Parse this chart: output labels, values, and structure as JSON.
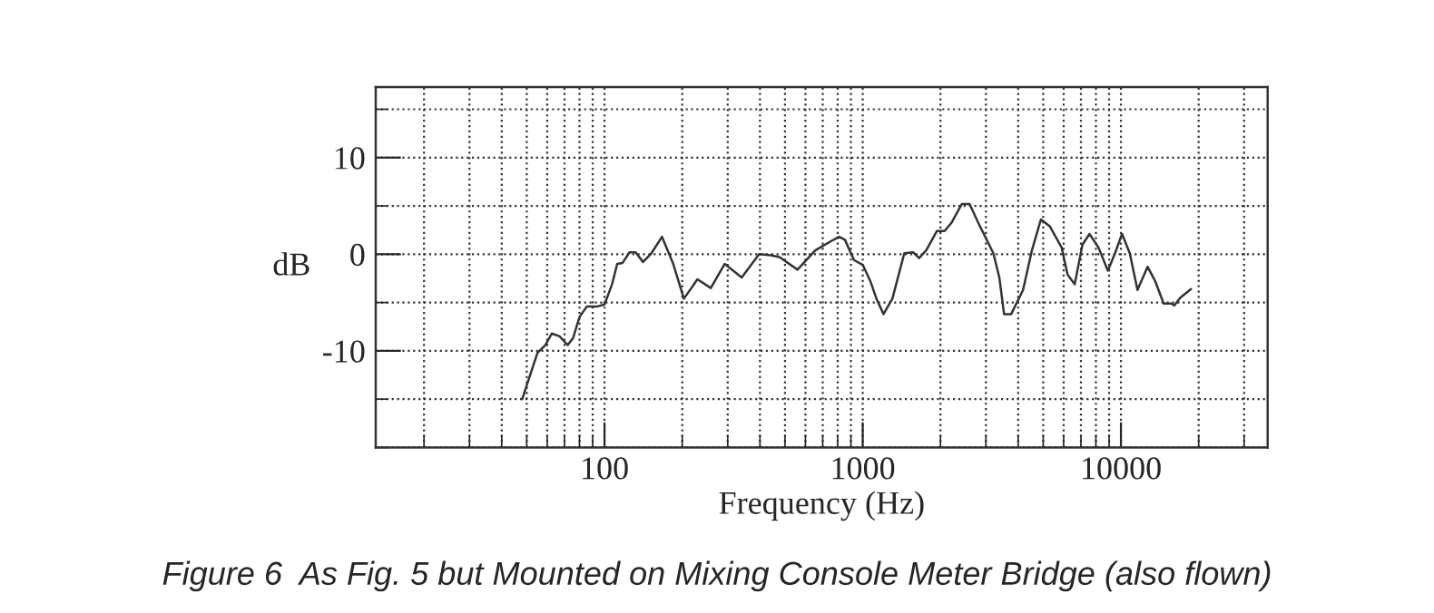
{
  "chart_data": {
    "type": "line",
    "xlabel": "Frequency (Hz)",
    "ylabel": "dB",
    "annotations": [
      "Figure 6  As Fig. 5 but Mounted on Mixing Console Meter Bridge (also flown)"
    ],
    "log": "x",
    "xlim": [
      13,
      37000
    ],
    "ylim": [
      -20,
      17.3
    ],
    "xticks": [
      100,
      1000,
      10000
    ],
    "yticks": [
      {
        "value": -10,
        "label": "-10"
      },
      0,
      10
    ],
    "grid": true,
    "marker": "none",
    "line_style": "solid",
    "series": [
      {
        "color": "#333333",
        "x": [
          48,
          55,
          59,
          62.5,
          67,
          72,
          75.5,
          80,
          85.5,
          94,
          100,
          107,
          112,
          117.5,
          125,
          132,
          141,
          152,
          167,
          184,
          203,
          229,
          258,
          292,
          340,
          397,
          441,
          476,
          559,
          655,
          748,
          810,
          853,
          925,
          1000,
          1071,
          1130,
          1204,
          1303,
          1449,
          1568,
          1653,
          1761,
          1937,
          2075,
          2213,
          2421,
          2594,
          2808,
          3206,
          3381,
          3527,
          3758,
          4178,
          4521,
          4898,
          5300,
          5892,
          6212,
          6621,
          7096,
          7555,
          8183,
          8899,
          9487,
          10100,
          10820,
          11590,
          12680,
          13580,
          14640,
          15680,
          16110,
          16980,
          17910,
          18680
        ],
        "values": [
          -15,
          -10.2,
          -9.4,
          -8.2,
          -8.5,
          -9.4,
          -8.7,
          -6.5,
          -5.4,
          -5.4,
          -5.2,
          -3.1,
          -1,
          -0.9,
          0.2,
          0.2,
          -0.8,
          0.1,
          1.8,
          -0.9,
          -4.6,
          -2.6,
          -3.5,
          -1,
          -2.4,
          0,
          -0.1,
          -0.3,
          -1.6,
          0.4,
          1.3,
          1.8,
          1.5,
          -0.6,
          -1.1,
          -2.8,
          -4.6,
          -6.2,
          -4.6,
          0.1,
          0.2,
          -0.4,
          0.4,
          2.4,
          2.4,
          3.3,
          5.2,
          5.2,
          3.2,
          0.1,
          -2.4,
          -6.2,
          -6.2,
          -3.7,
          0.4,
          3.6,
          2.9,
          0.7,
          -2.1,
          -3.1,
          1,
          2.1,
          0.7,
          -1.7,
          0.1,
          2.1,
          0.1,
          -3.7,
          -1.3,
          -2.8,
          -5.1,
          -5.1,
          -5.3,
          -4.5,
          -4,
          -3.6
        ]
      }
    ]
  }
}
